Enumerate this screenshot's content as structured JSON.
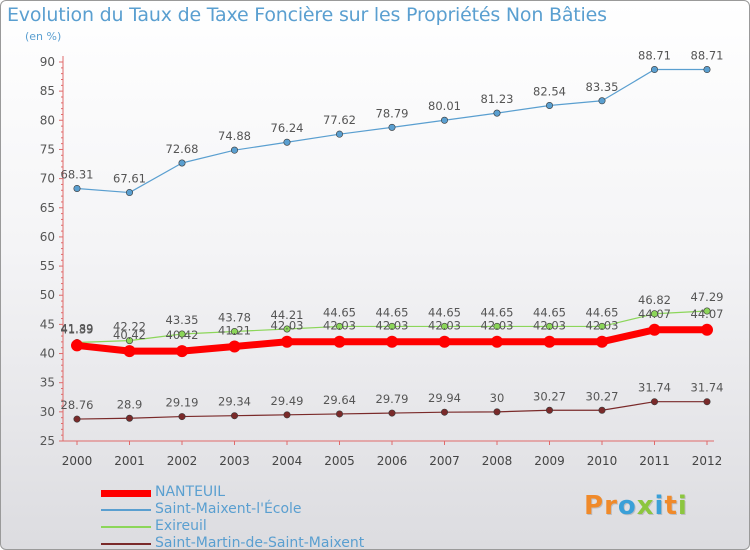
{
  "title": "Evolution du Taux de Taxe Foncière sur les Propriétés Non Bâties",
  "unit_label": "(en %)",
  "brand": "Proxiti",
  "brand_colors": [
    "#f08a2a",
    "#f08a2a",
    "#3aa0d8",
    "#8cc63f",
    "#3aa0d8",
    "#f08a2a",
    "#8cc63f"
  ],
  "chart_data": {
    "type": "line",
    "title": "Evolution du Taux de Taxe Foncière sur les Propriétés Non Bâties",
    "ylabel": "(en %)",
    "xlabel": "",
    "x": [
      "2000",
      "2001",
      "2002",
      "2003",
      "2004",
      "2005",
      "2006",
      "2007",
      "2008",
      "2009",
      "2010",
      "2011",
      "2012"
    ],
    "ylim": [
      25,
      90
    ],
    "yticks": [
      "25",
      "30",
      "35",
      "40",
      "45",
      "50",
      "55",
      "60",
      "65",
      "70",
      "75",
      "80",
      "85",
      "90"
    ],
    "grid": false,
    "legend_position": "bottom-left",
    "series": [
      {
        "name": "NANTEUIL",
        "color": "#ff0000",
        "values": [
          41.39,
          40.42,
          40.42,
          41.21,
          42.03,
          42.03,
          42.03,
          42.03,
          42.03,
          42.03,
          42.03,
          44.07,
          44.07
        ],
        "labels": [
          "41.39",
          "40.42",
          "40.42",
          "41.21",
          "42.03",
          "42.03",
          "42.03",
          "42.03",
          "42.03",
          "42.03",
          "42.03",
          "44.07",
          "44.07"
        ]
      },
      {
        "name": "Saint-Maixent-l'École",
        "color": "#5a9fd0",
        "values": [
          68.31,
          67.61,
          72.68,
          74.88,
          76.24,
          77.62,
          78.79,
          80.01,
          81.23,
          82.54,
          83.35,
          88.71,
          88.71
        ],
        "labels": [
          "68.31",
          "67.61",
          "72.68",
          "74.88",
          "76.24",
          "77.62",
          "78.79",
          "80.01",
          "81.23",
          "82.54",
          "83.35",
          "88.71",
          "88.71"
        ]
      },
      {
        "name": "Exireuil",
        "color": "#8cd65a",
        "values": [
          41.89,
          42.22,
          43.35,
          43.78,
          44.21,
          44.65,
          44.65,
          44.65,
          44.65,
          44.65,
          44.65,
          46.82,
          47.29
        ],
        "labels": [
          "41.89",
          "42.22",
          "43.35",
          "43.78",
          "44.21",
          "44.65",
          "44.65",
          "44.65",
          "44.65",
          "44.65",
          "44.65",
          "46.82",
          "47.29"
        ]
      },
      {
        "name": "Saint-Martin-de-Saint-Maixent",
        "color": "#7a2a2a",
        "values": [
          28.76,
          28.9,
          29.19,
          29.34,
          29.49,
          29.64,
          29.79,
          29.94,
          30,
          30.27,
          30.27,
          31.74,
          31.74
        ],
        "labels": [
          "28.76",
          "28.9",
          "29.19",
          "29.34",
          "29.49",
          "29.64",
          "29.79",
          "29.94",
          "30",
          "30.27",
          "30.27",
          "31.74",
          "31.74"
        ]
      }
    ]
  }
}
